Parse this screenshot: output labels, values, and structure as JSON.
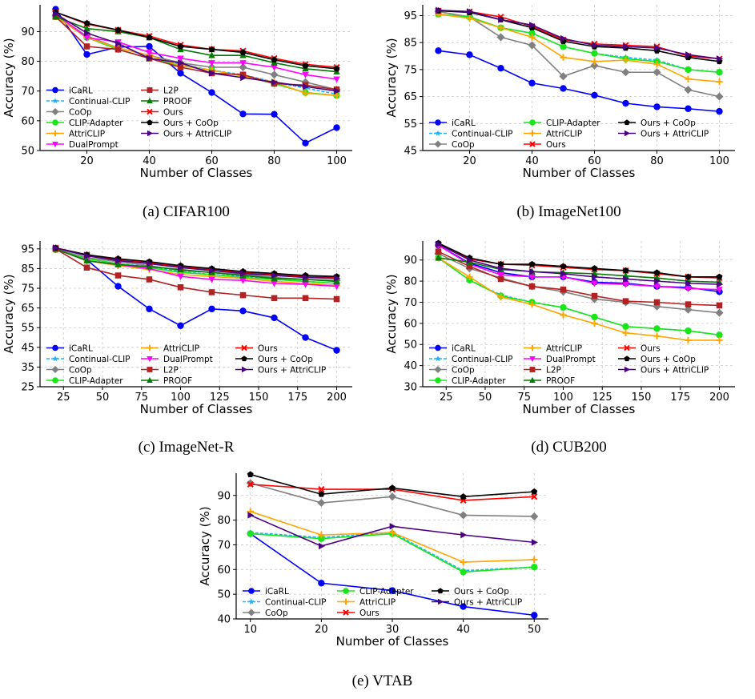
{
  "styles": {
    "iCaRL": {
      "color": "#0000ff",
      "marker": "circle",
      "dash": "none"
    },
    "Continual-CLIP": {
      "color": "#1fb4ff",
      "marker": "star",
      "dash": "4 2"
    },
    "CoOp": {
      "color": "#808080",
      "marker": "diamond",
      "dash": "none"
    },
    "CLIP-Adapter": {
      "color": "#19e619",
      "marker": "circle",
      "dash": "none"
    },
    "AttriCLIP": {
      "color": "#ffa500",
      "marker": "plus",
      "dash": "none"
    },
    "DualPrompt": {
      "color": "#ff00ff",
      "marker": "tri-down",
      "dash": "none"
    },
    "L2P": {
      "color": "#b22222",
      "marker": "square",
      "dash": "none"
    },
    "PROOF": {
      "color": "#007a00",
      "marker": "tri-up",
      "dash": "none"
    },
    "Ours": {
      "color": "#ff0000",
      "marker": "x",
      "dash": "none"
    },
    "Ours + CoOp": {
      "color": "#000000",
      "marker": "pentagon",
      "dash": "none"
    },
    "Ours + AttriCLIP": {
      "color": "#4b0082",
      "marker": "tri-right",
      "dash": "none"
    }
  },
  "captions": [
    "(a) CIFAR100",
    "(b) ImageNet100",
    "(c) ImageNet-R",
    "(d) CUB200",
    "(e) VTAB"
  ],
  "chart_data": [
    {
      "type": "line",
      "caption": "(a) CIFAR100",
      "xlabel": "Number of Classes",
      "ylabel": "Accuracy (%)",
      "xlim": [
        5,
        105
      ],
      "ylim": [
        50,
        99
      ],
      "xticks": [
        20,
        40,
        60,
        80,
        100
      ],
      "yticks": [
        50,
        60,
        70,
        80,
        90
      ],
      "grid": true,
      "legend_columns": [
        [
          "iCaRL",
          "Continual-CLIP",
          "CoOp",
          "CLIP-Adapter",
          "AttriCLIP",
          "DualPrompt"
        ],
        [
          "L2P",
          "PROOF",
          "Ours",
          "Ours + CoOp",
          "Ours + AttriCLIP"
        ]
      ],
      "x": [
        10,
        20,
        30,
        40,
        50,
        60,
        70,
        80,
        90,
        100
      ],
      "series": [
        {
          "name": "iCaRL",
          "values": [
            97.5,
            82.3,
            84.8,
            85.0,
            76.0,
            69.5,
            62.3,
            62.2,
            52.5,
            57.7
          ]
        },
        {
          "name": "Continual-CLIP",
          "values": [
            95.0,
            88.0,
            84.0,
            81.0,
            79.0,
            77.0,
            75.5,
            73.0,
            71.0,
            69.0
          ]
        },
        {
          "name": "CoOp",
          "values": [
            95.5,
            88.5,
            84.5,
            82.0,
            79.5,
            78.0,
            78.0,
            75.5,
            73.0,
            70.5
          ]
        },
        {
          "name": "CLIP-Adapter",
          "values": [
            95.0,
            88.0,
            84.0,
            81.0,
            78.5,
            77.0,
            75.0,
            72.5,
            69.5,
            68.5
          ]
        },
        {
          "name": "AttriCLIP",
          "values": [
            95.0,
            88.0,
            84.5,
            82.0,
            78.5,
            77.0,
            75.0,
            73.0,
            69.3,
            68.5
          ]
        },
        {
          "name": "DualPrompt",
          "values": [
            96.0,
            88.0,
            86.5,
            83.0,
            81.0,
            79.5,
            79.5,
            78.0,
            75.5,
            74.0
          ]
        },
        {
          "name": "L2P",
          "values": [
            95.0,
            85.0,
            84.0,
            81.0,
            78.0,
            76.0,
            75.5,
            72.5,
            72.0,
            70.5
          ]
        },
        {
          "name": "PROOF",
          "values": [
            95.0,
            91.0,
            90.0,
            88.0,
            84.0,
            82.0,
            82.0,
            79.5,
            77.5,
            76.5
          ]
        },
        {
          "name": "Ours",
          "values": [
            96.5,
            92.5,
            90.5,
            88.5,
            85.5,
            84.0,
            83.5,
            81.0,
            79.0,
            78.0
          ]
        },
        {
          "name": "Ours + CoOp",
          "values": [
            96.5,
            92.8,
            90.5,
            88.0,
            85.0,
            84.0,
            83.0,
            80.5,
            78.5,
            77.5
          ]
        },
        {
          "name": "Ours + AttriCLIP",
          "values": [
            96.0,
            89.5,
            86.0,
            81.0,
            79.5,
            76.0,
            74.5,
            73.0,
            71.5,
            70.0
          ]
        }
      ]
    },
    {
      "type": "line",
      "caption": "(b) ImageNet100",
      "xlabel": "Number of Classes",
      "ylabel": "Accuracy (%)",
      "xlim": [
        5,
        105
      ],
      "ylim": [
        45,
        99
      ],
      "xticks": [
        20,
        40,
        60,
        80,
        100
      ],
      "yticks": [
        45,
        55,
        65,
        75,
        85,
        95
      ],
      "grid": true,
      "legend_columns": [
        [
          "iCaRL",
          "Continual-CLIP",
          "CoOp"
        ],
        [
          "CLIP-Adapter",
          "AttriCLIP",
          "Ours"
        ],
        [
          "Ours + CoOp",
          "Ours + AttriCLIP"
        ]
      ],
      "x": [
        10,
        20,
        30,
        40,
        50,
        60,
        70,
        80,
        90,
        100
      ],
      "series": [
        {
          "name": "iCaRL",
          "values": [
            82.0,
            80.5,
            75.5,
            70.0,
            68.0,
            65.5,
            62.5,
            61.2,
            60.5,
            59.5
          ]
        },
        {
          "name": "Continual-CLIP",
          "values": [
            95.5,
            94.5,
            90.5,
            88.5,
            83.5,
            81.0,
            79.5,
            78.5,
            75.0,
            74.0
          ]
        },
        {
          "name": "CoOp",
          "values": [
            96.5,
            94.5,
            87.0,
            84.0,
            72.5,
            76.5,
            74.0,
            74.0,
            67.5,
            65.0
          ]
        },
        {
          "name": "CLIP-Adapter",
          "values": [
            95.5,
            94.5,
            90.5,
            88.5,
            83.5,
            81.0,
            79.0,
            78.0,
            75.0,
            74.0
          ]
        },
        {
          "name": "AttriCLIP",
          "values": [
            95.5,
            94.0,
            90.5,
            87.0,
            79.5,
            78.0,
            78.5,
            77.0,
            71.5,
            70.5
          ]
        },
        {
          "name": "Ours",
          "values": [
            96.8,
            96.5,
            94.5,
            91.0,
            86.0,
            84.5,
            84.0,
            83.5,
            80.0,
            79.0
          ]
        },
        {
          "name": "Ours + CoOp",
          "values": [
            96.8,
            96.2,
            93.5,
            90.5,
            85.5,
            83.5,
            83.0,
            82.0,
            79.5,
            78.0
          ]
        },
        {
          "name": "Ours + AttriCLIP",
          "values": [
            97.0,
            96.5,
            93.5,
            91.5,
            86.5,
            84.0,
            83.5,
            83.0,
            80.5,
            79.0
          ]
        }
      ]
    },
    {
      "type": "line",
      "caption": "(c) ImageNet-R",
      "xlabel": "Number of Classes",
      "ylabel": "Accuracy (%)",
      "xlim": [
        10,
        210
      ],
      "ylim": [
        25,
        99
      ],
      "xticks": [
        25,
        50,
        75,
        100,
        125,
        150,
        175,
        200
      ],
      "yticks": [
        25,
        35,
        45,
        55,
        65,
        75,
        85,
        95
      ],
      "grid": true,
      "legend_columns": [
        [
          "iCaRL",
          "Continual-CLIP",
          "CoOp",
          "CLIP-Adapter"
        ],
        [
          "AttriCLIP",
          "DualPrompt",
          "L2P",
          "PROOF"
        ],
        [
          "Ours",
          "Ours + CoOp",
          "Ours + AttriCLIP"
        ]
      ],
      "x": [
        20,
        40,
        60,
        80,
        100,
        120,
        140,
        160,
        180,
        200
      ],
      "series": [
        {
          "name": "iCaRL",
          "values": [
            95.0,
            89.5,
            76.0,
            64.5,
            56.0,
            64.5,
            63.5,
            60.0,
            50.0,
            43.5
          ]
        },
        {
          "name": "Continual-CLIP",
          "values": [
            94.5,
            90.0,
            87.5,
            86.0,
            83.5,
            82.0,
            81.0,
            79.5,
            78.5,
            77.5
          ]
        },
        {
          "name": "CoOp",
          "values": [
            95.0,
            90.5,
            88.5,
            86.5,
            84.0,
            83.0,
            82.0,
            80.5,
            79.5,
            79.0
          ]
        },
        {
          "name": "CLIP-Adapter",
          "values": [
            94.5,
            90.0,
            87.5,
            85.5,
            83.0,
            82.0,
            80.5,
            79.5,
            78.5,
            77.5
          ]
        },
        {
          "name": "AttriCLIP",
          "values": [
            95.0,
            89.0,
            86.5,
            84.5,
            82.0,
            81.0,
            80.0,
            78.5,
            77.5,
            76.5
          ]
        },
        {
          "name": "DualPrompt",
          "values": [
            95.0,
            89.0,
            87.0,
            85.0,
            81.0,
            79.5,
            79.0,
            77.5,
            77.0,
            76.0
          ]
        },
        {
          "name": "L2P",
          "values": [
            95.0,
            85.5,
            81.5,
            79.5,
            75.5,
            73.0,
            71.5,
            70.0,
            70.0,
            69.5
          ]
        },
        {
          "name": "PROOF",
          "values": [
            95.0,
            89.0,
            87.0,
            86.0,
            84.5,
            83.0,
            81.5,
            80.0,
            79.5,
            78.5
          ]
        },
        {
          "name": "Ours",
          "values": [
            95.5,
            92.0,
            89.5,
            88.0,
            86.0,
            84.5,
            83.0,
            82.0,
            81.0,
            80.5
          ]
        },
        {
          "name": "Ours + CoOp",
          "values": [
            95.5,
            92.0,
            90.0,
            88.5,
            86.5,
            85.0,
            83.5,
            82.5,
            81.5,
            81.0
          ]
        },
        {
          "name": "Ours + AttriCLIP",
          "values": [
            95.5,
            91.5,
            89.0,
            87.5,
            85.5,
            84.0,
            82.5,
            81.5,
            80.5,
            80.0
          ]
        }
      ]
    },
    {
      "type": "line",
      "caption": "(d) CUB200",
      "xlabel": "Number of Classes",
      "ylabel": "Accuracy (%)",
      "xlim": [
        10,
        210
      ],
      "ylim": [
        30,
        99
      ],
      "xticks": [
        25,
        50,
        75,
        100,
        125,
        150,
        175,
        200
      ],
      "yticks": [
        30,
        40,
        50,
        60,
        70,
        80,
        90
      ],
      "grid": true,
      "legend_columns": [
        [
          "iCaRL",
          "Continual-CLIP",
          "CoOp",
          "CLIP-Adapter"
        ],
        [
          "AttriCLIP",
          "DualPrompt",
          "L2P",
          "PROOF"
        ],
        [
          "Ours",
          "Ours + CoOp",
          "Ours + AttriCLIP"
        ]
      ],
      "x": [
        20,
        40,
        60,
        80,
        100,
        120,
        140,
        160,
        180,
        200
      ],
      "series": [
        {
          "name": "iCaRL",
          "values": [
            97.0,
            88.5,
            84.0,
            82.0,
            82.0,
            79.5,
            79.0,
            77.5,
            77.0,
            75.0
          ]
        },
        {
          "name": "Continual-CLIP",
          "values": [
            91.0,
            80.5,
            73.5,
            70.0,
            67.5,
            63.0,
            58.5,
            57.5,
            56.5,
            54.5
          ]
        },
        {
          "name": "CoOp",
          "values": [
            93.0,
            86.0,
            81.5,
            77.5,
            75.0,
            71.5,
            70.0,
            68.0,
            66.5,
            65.0
          ]
        },
        {
          "name": "CLIP-Adapter",
          "values": [
            91.0,
            80.5,
            73.0,
            70.0,
            67.5,
            63.0,
            58.5,
            57.5,
            56.5,
            54.5
          ]
        },
        {
          "name": "AttriCLIP",
          "values": [
            91.0,
            82.0,
            72.5,
            69.0,
            64.0,
            60.0,
            55.5,
            54.0,
            52.0,
            52.0
          ]
        },
        {
          "name": "DualPrompt",
          "values": [
            97.0,
            88.0,
            83.0,
            82.0,
            82.0,
            79.0,
            78.5,
            77.5,
            76.5,
            76.0
          ]
        },
        {
          "name": "L2P",
          "values": [
            94.0,
            87.0,
            81.0,
            77.5,
            76.0,
            73.0,
            70.5,
            70.0,
            69.0,
            68.5
          ]
        },
        {
          "name": "PROOF",
          "values": [
            91.0,
            89.0,
            85.5,
            84.5,
            84.0,
            83.5,
            82.5,
            81.5,
            80.0,
            79.5
          ]
        },
        {
          "name": "Ours",
          "values": [
            97.5,
            90.5,
            88.0,
            87.5,
            86.5,
            85.5,
            85.0,
            83.5,
            82.0,
            81.5
          ]
        },
        {
          "name": "Ours + CoOp",
          "values": [
            98.0,
            91.0,
            88.0,
            88.0,
            87.0,
            86.0,
            85.0,
            84.0,
            82.0,
            82.0
          ]
        },
        {
          "name": "Ours + AttriCLIP",
          "values": [
            97.5,
            90.0,
            86.0,
            84.5,
            83.5,
            82.0,
            81.0,
            80.0,
            79.0,
            78.5
          ]
        }
      ]
    },
    {
      "type": "line",
      "caption": "(e) VTAB",
      "xlabel": "Number of Classes",
      "ylabel": "Accuracy (%)",
      "xlim": [
        8,
        52
      ],
      "ylim": [
        40,
        99
      ],
      "xticks": [
        10,
        20,
        30,
        40,
        50
      ],
      "yticks": [
        40,
        50,
        60,
        70,
        80,
        90
      ],
      "grid": true,
      "legend_columns": [
        [
          "iCaRL",
          "Continual-CLIP",
          "CoOp"
        ],
        [
          "CLIP-Adapter",
          "AttriCLIP",
          "Ours"
        ],
        [
          "Ours + CoOp",
          "Ours + AttriCLIP"
        ]
      ],
      "x": [
        10,
        20,
        30,
        40,
        50
      ],
      "series": [
        {
          "name": "iCaRL",
          "values": [
            74.5,
            54.5,
            51.5,
            45.0,
            41.5
          ]
        },
        {
          "name": "Continual-CLIP",
          "values": [
            75.0,
            73.0,
            75.0,
            59.5,
            61.0
          ]
        },
        {
          "name": "CoOp",
          "values": [
            95.0,
            87.0,
            89.5,
            82.0,
            81.5
          ]
        },
        {
          "name": "CLIP-Adapter",
          "values": [
            74.5,
            72.5,
            74.5,
            59.0,
            61.0
          ]
        },
        {
          "name": "AttriCLIP",
          "values": [
            83.5,
            74.0,
            75.0,
            63.0,
            64.0
          ]
        },
        {
          "name": "Ours",
          "values": [
            94.5,
            92.5,
            92.5,
            88.0,
            89.5
          ]
        },
        {
          "name": "Ours + CoOp",
          "values": [
            98.5,
            90.5,
            93.0,
            89.5,
            91.5
          ]
        },
        {
          "name": "Ours + AttriCLIP",
          "values": [
            82.0,
            69.5,
            77.5,
            74.0,
            71.0
          ]
        }
      ]
    }
  ]
}
